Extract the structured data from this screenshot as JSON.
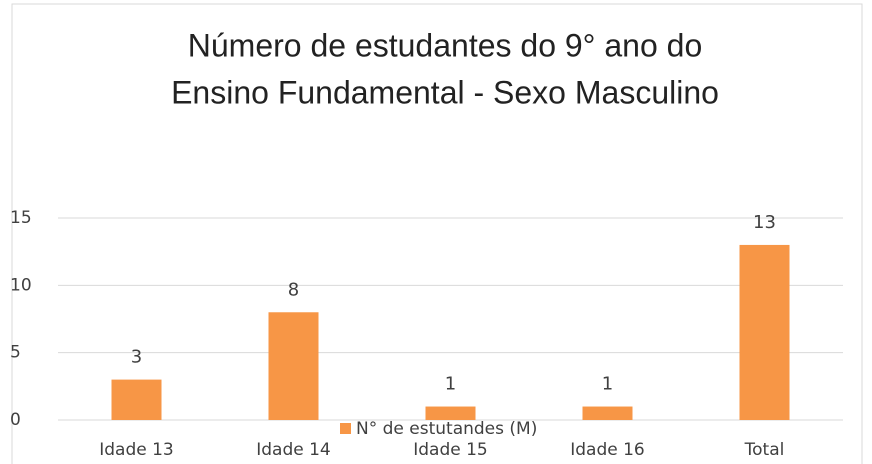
{
  "chart_data": {
    "type": "bar",
    "title": [
      "Número de estudantes do 9° ano do",
      "Ensino Fundamental - Sexo Masculino"
    ],
    "categories": [
      "Idade 13",
      "Idade 14",
      "Idade 15",
      "Idade 16",
      "Total"
    ],
    "series": [
      {
        "name": "N° de estutandes (M)",
        "color": "#f79646",
        "values": [
          3,
          8,
          1,
          1,
          13
        ]
      }
    ],
    "ylim": [
      0,
      15
    ],
    "yticks": [
      0,
      5,
      10,
      15
    ],
    "grid": true,
    "legend": "bottom"
  }
}
